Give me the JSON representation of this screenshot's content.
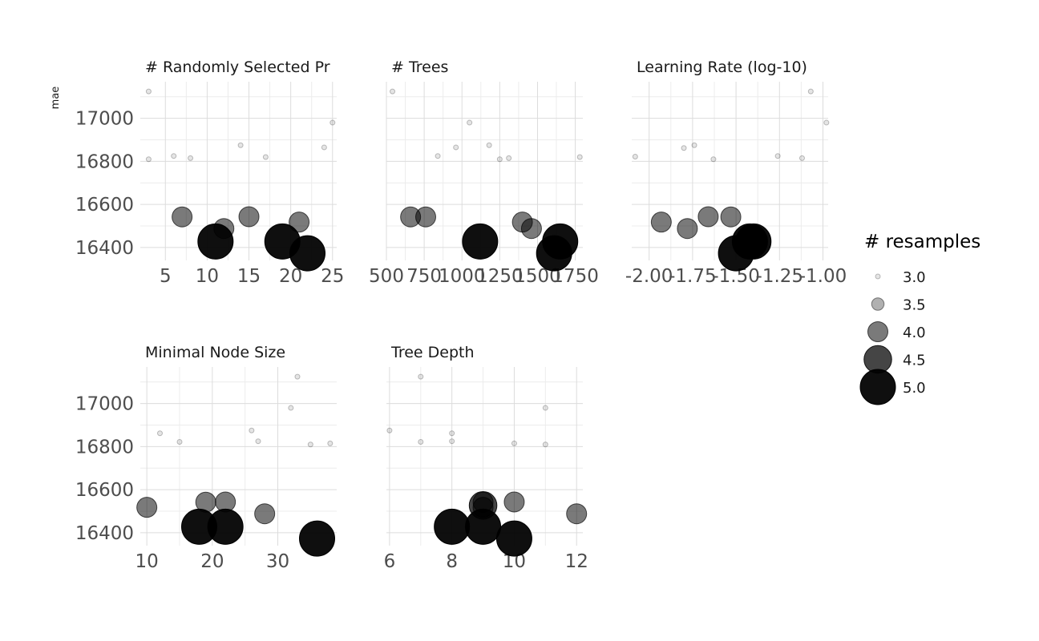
{
  "chart_data": {
    "type": "scatter",
    "ylabel": "mae",
    "ylim": [
      16340,
      17170
    ],
    "y_ticks": [
      16400,
      16600,
      16800,
      17000
    ],
    "legend": {
      "title": "# resamples",
      "placement": "right",
      "entries": [
        {
          "label": "3.0",
          "value": 3.0
        },
        {
          "label": "3.5",
          "value": 3.5
        },
        {
          "label": "4.0",
          "value": 4.0
        },
        {
          "label": "4.5",
          "value": 4.5
        },
        {
          "label": "5.0",
          "value": 5.0
        }
      ]
    },
    "panels": [
      {
        "title": "# Randomly Selected Pr",
        "xlim": [
          2,
          25.5
        ],
        "x_ticks": [
          5,
          10,
          15,
          20,
          25
        ],
        "x_tick_labels": [
          "5",
          "10",
          "15",
          "20",
          "25"
        ],
        "points": [
          {
            "x": 3,
            "y": 17125,
            "n": 3
          },
          {
            "x": 3,
            "y": 16810,
            "n": 3
          },
          {
            "x": 6,
            "y": 16825,
            "n": 3
          },
          {
            "x": 8,
            "y": 16815,
            "n": 3
          },
          {
            "x": 14,
            "y": 16875,
            "n": 3
          },
          {
            "x": 17,
            "y": 16820,
            "n": 3
          },
          {
            "x": 24,
            "y": 16865,
            "n": 3
          },
          {
            "x": 25,
            "y": 16980,
            "n": 3
          },
          {
            "x": 7,
            "y": 16542,
            "n": 4
          },
          {
            "x": 12,
            "y": 16488,
            "n": 4
          },
          {
            "x": 15,
            "y": 16543,
            "n": 4
          },
          {
            "x": 21,
            "y": 16518,
            "n": 4
          },
          {
            "x": 11,
            "y": 16428,
            "n": 5
          },
          {
            "x": 19,
            "y": 16428,
            "n": 5
          },
          {
            "x": 22,
            "y": 16373,
            "n": 5
          }
        ]
      },
      {
        "title": "# Trees",
        "xlim": [
          500,
          1800
        ],
        "x_ticks": [
          500,
          750,
          1000,
          1250,
          1500,
          1750
        ],
        "x_tick_labels": [
          "500",
          "750",
          "1000",
          "1250",
          "1500",
          "1750"
        ],
        "points": [
          {
            "x": 540,
            "y": 17125,
            "n": 3
          },
          {
            "x": 840,
            "y": 16825,
            "n": 3
          },
          {
            "x": 960,
            "y": 16865,
            "n": 3
          },
          {
            "x": 1050,
            "y": 16980,
            "n": 3
          },
          {
            "x": 1180,
            "y": 16875,
            "n": 3
          },
          {
            "x": 1250,
            "y": 16810,
            "n": 3
          },
          {
            "x": 1310,
            "y": 16815,
            "n": 3
          },
          {
            "x": 1780,
            "y": 16820,
            "n": 3
          },
          {
            "x": 660,
            "y": 16542,
            "n": 4
          },
          {
            "x": 760,
            "y": 16542,
            "n": 4
          },
          {
            "x": 1400,
            "y": 16518,
            "n": 4
          },
          {
            "x": 1460,
            "y": 16488,
            "n": 4
          },
          {
            "x": 1120,
            "y": 16428,
            "n": 5
          },
          {
            "x": 1650,
            "y": 16428,
            "n": 5
          },
          {
            "x": 1610,
            "y": 16373,
            "n": 5
          }
        ]
      },
      {
        "title": "Learning Rate (log-10)",
        "xlim": [
          -2.1,
          -0.97
        ],
        "x_ticks": [
          -2.0,
          -1.75,
          -1.5,
          -1.25,
          -1.0
        ],
        "x_tick_labels": [
          "-2.00",
          "-1.75",
          "-1.50",
          "-1.25",
          "-1.00"
        ],
        "points": [
          {
            "x": -2.08,
            "y": 16822,
            "n": 3
          },
          {
            "x": -1.8,
            "y": 16862,
            "n": 3
          },
          {
            "x": -1.74,
            "y": 16875,
            "n": 3
          },
          {
            "x": -1.63,
            "y": 16810,
            "n": 3
          },
          {
            "x": -1.26,
            "y": 16825,
            "n": 3
          },
          {
            "x": -1.12,
            "y": 16815,
            "n": 3
          },
          {
            "x": -1.07,
            "y": 17125,
            "n": 3
          },
          {
            "x": -0.98,
            "y": 16980,
            "n": 3
          },
          {
            "x": -1.93,
            "y": 16518,
            "n": 4
          },
          {
            "x": -1.78,
            "y": 16488,
            "n": 4
          },
          {
            "x": -1.66,
            "y": 16543,
            "n": 4
          },
          {
            "x": -1.53,
            "y": 16542,
            "n": 4
          },
          {
            "x": -1.5,
            "y": 16373,
            "n": 5
          },
          {
            "x": -1.42,
            "y": 16428,
            "n": 5
          },
          {
            "x": -1.4,
            "y": 16428,
            "n": 5
          }
        ]
      },
      {
        "title": "Minimal Node Size",
        "xlim": [
          9,
          39
        ],
        "x_ticks": [
          10,
          20,
          30
        ],
        "x_tick_labels": [
          "10",
          "20",
          "30"
        ],
        "points": [
          {
            "x": 12,
            "y": 16862,
            "n": 3
          },
          {
            "x": 15,
            "y": 16822,
            "n": 3
          },
          {
            "x": 26,
            "y": 16875,
            "n": 3
          },
          {
            "x": 27,
            "y": 16825,
            "n": 3
          },
          {
            "x": 32,
            "y": 16980,
            "n": 3
          },
          {
            "x": 33,
            "y": 17125,
            "n": 3
          },
          {
            "x": 35,
            "y": 16810,
            "n": 3
          },
          {
            "x": 38,
            "y": 16815,
            "n": 3
          },
          {
            "x": 10,
            "y": 16518,
            "n": 4
          },
          {
            "x": 19,
            "y": 16542,
            "n": 4
          },
          {
            "x": 22,
            "y": 16543,
            "n": 4
          },
          {
            "x": 28,
            "y": 16488,
            "n": 4
          },
          {
            "x": 18,
            "y": 16428,
            "n": 5
          },
          {
            "x": 22,
            "y": 16428,
            "n": 5
          },
          {
            "x": 36,
            "y": 16373,
            "n": 5
          }
        ]
      },
      {
        "title": "Tree Depth",
        "xlim": [
          5.9,
          12.2
        ],
        "x_ticks": [
          6,
          8,
          10,
          12
        ],
        "x_tick_labels": [
          "6",
          "8",
          "10",
          "12"
        ],
        "points": [
          {
            "x": 6,
            "y": 16875,
            "n": 3
          },
          {
            "x": 7,
            "y": 17125,
            "n": 3
          },
          {
            "x": 7,
            "y": 16822,
            "n": 3
          },
          {
            "x": 8,
            "y": 16862,
            "n": 3
          },
          {
            "x": 8,
            "y": 16825,
            "n": 3
          },
          {
            "x": 10,
            "y": 16815,
            "n": 3
          },
          {
            "x": 11,
            "y": 16980,
            "n": 3
          },
          {
            "x": 11,
            "y": 16810,
            "n": 3
          },
          {
            "x": 9,
            "y": 16542,
            "n": 4
          },
          {
            "x": 9,
            "y": 16518,
            "n": 4
          },
          {
            "x": 10,
            "y": 16543,
            "n": 4
          },
          {
            "x": 12,
            "y": 16488,
            "n": 4
          },
          {
            "x": 9,
            "y": 16527,
            "n": 4.5
          },
          {
            "x": 8,
            "y": 16428,
            "n": 5
          },
          {
            "x": 9,
            "y": 16428,
            "n": 5
          },
          {
            "x": 10,
            "y": 16373,
            "n": 5
          }
        ]
      }
    ]
  }
}
